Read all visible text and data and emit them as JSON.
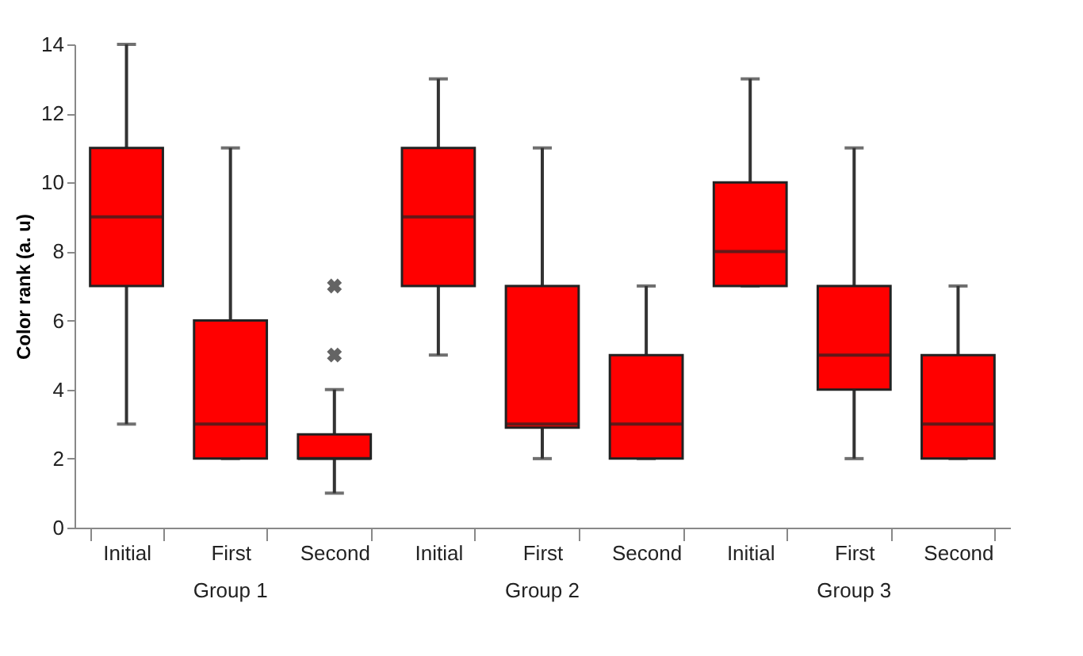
{
  "chart_data": {
    "type": "box",
    "ylabel": "Color rank (a. u)",
    "categories": [
      "Initial",
      "First",
      "Second",
      "Initial",
      "First",
      "Second",
      "Initial",
      "First",
      "Second"
    ],
    "annotations": [
      "Group 1",
      "Group 2",
      "Group 3"
    ],
    "color": "#ff0000",
    "boxes": [
      {
        "low": 3,
        "q1": 7,
        "median": 9,
        "q3": 11,
        "high": 14
      },
      {
        "low": 2,
        "q1": 2,
        "median": 3,
        "q3": 6,
        "high": 11
      },
      {
        "low": 1,
        "q1": 2,
        "median": 2,
        "q3": 2.7,
        "high": 4,
        "outliers": [
          5,
          7
        ]
      },
      {
        "low": 5,
        "q1": 7,
        "median": 9,
        "q3": 11,
        "high": 13
      },
      {
        "low": 2,
        "q1": 2.9,
        "median": 3,
        "q3": 7,
        "high": 11
      },
      {
        "low": 2,
        "q1": 2,
        "median": 3,
        "q3": 5,
        "high": 7
      },
      {
        "low": 7,
        "q1": 7,
        "median": 8,
        "q3": 10,
        "high": 13
      },
      {
        "low": 2,
        "q1": 4,
        "median": 5,
        "q3": 7,
        "high": 11
      },
      {
        "low": 2,
        "q1": 2,
        "median": 3,
        "q3": 5,
        "high": 7
      }
    ],
    "ylim": [
      0,
      14
    ],
    "yticks": [
      0,
      2,
      4,
      6,
      8,
      10,
      12,
      14
    ],
    "grid": false
  }
}
